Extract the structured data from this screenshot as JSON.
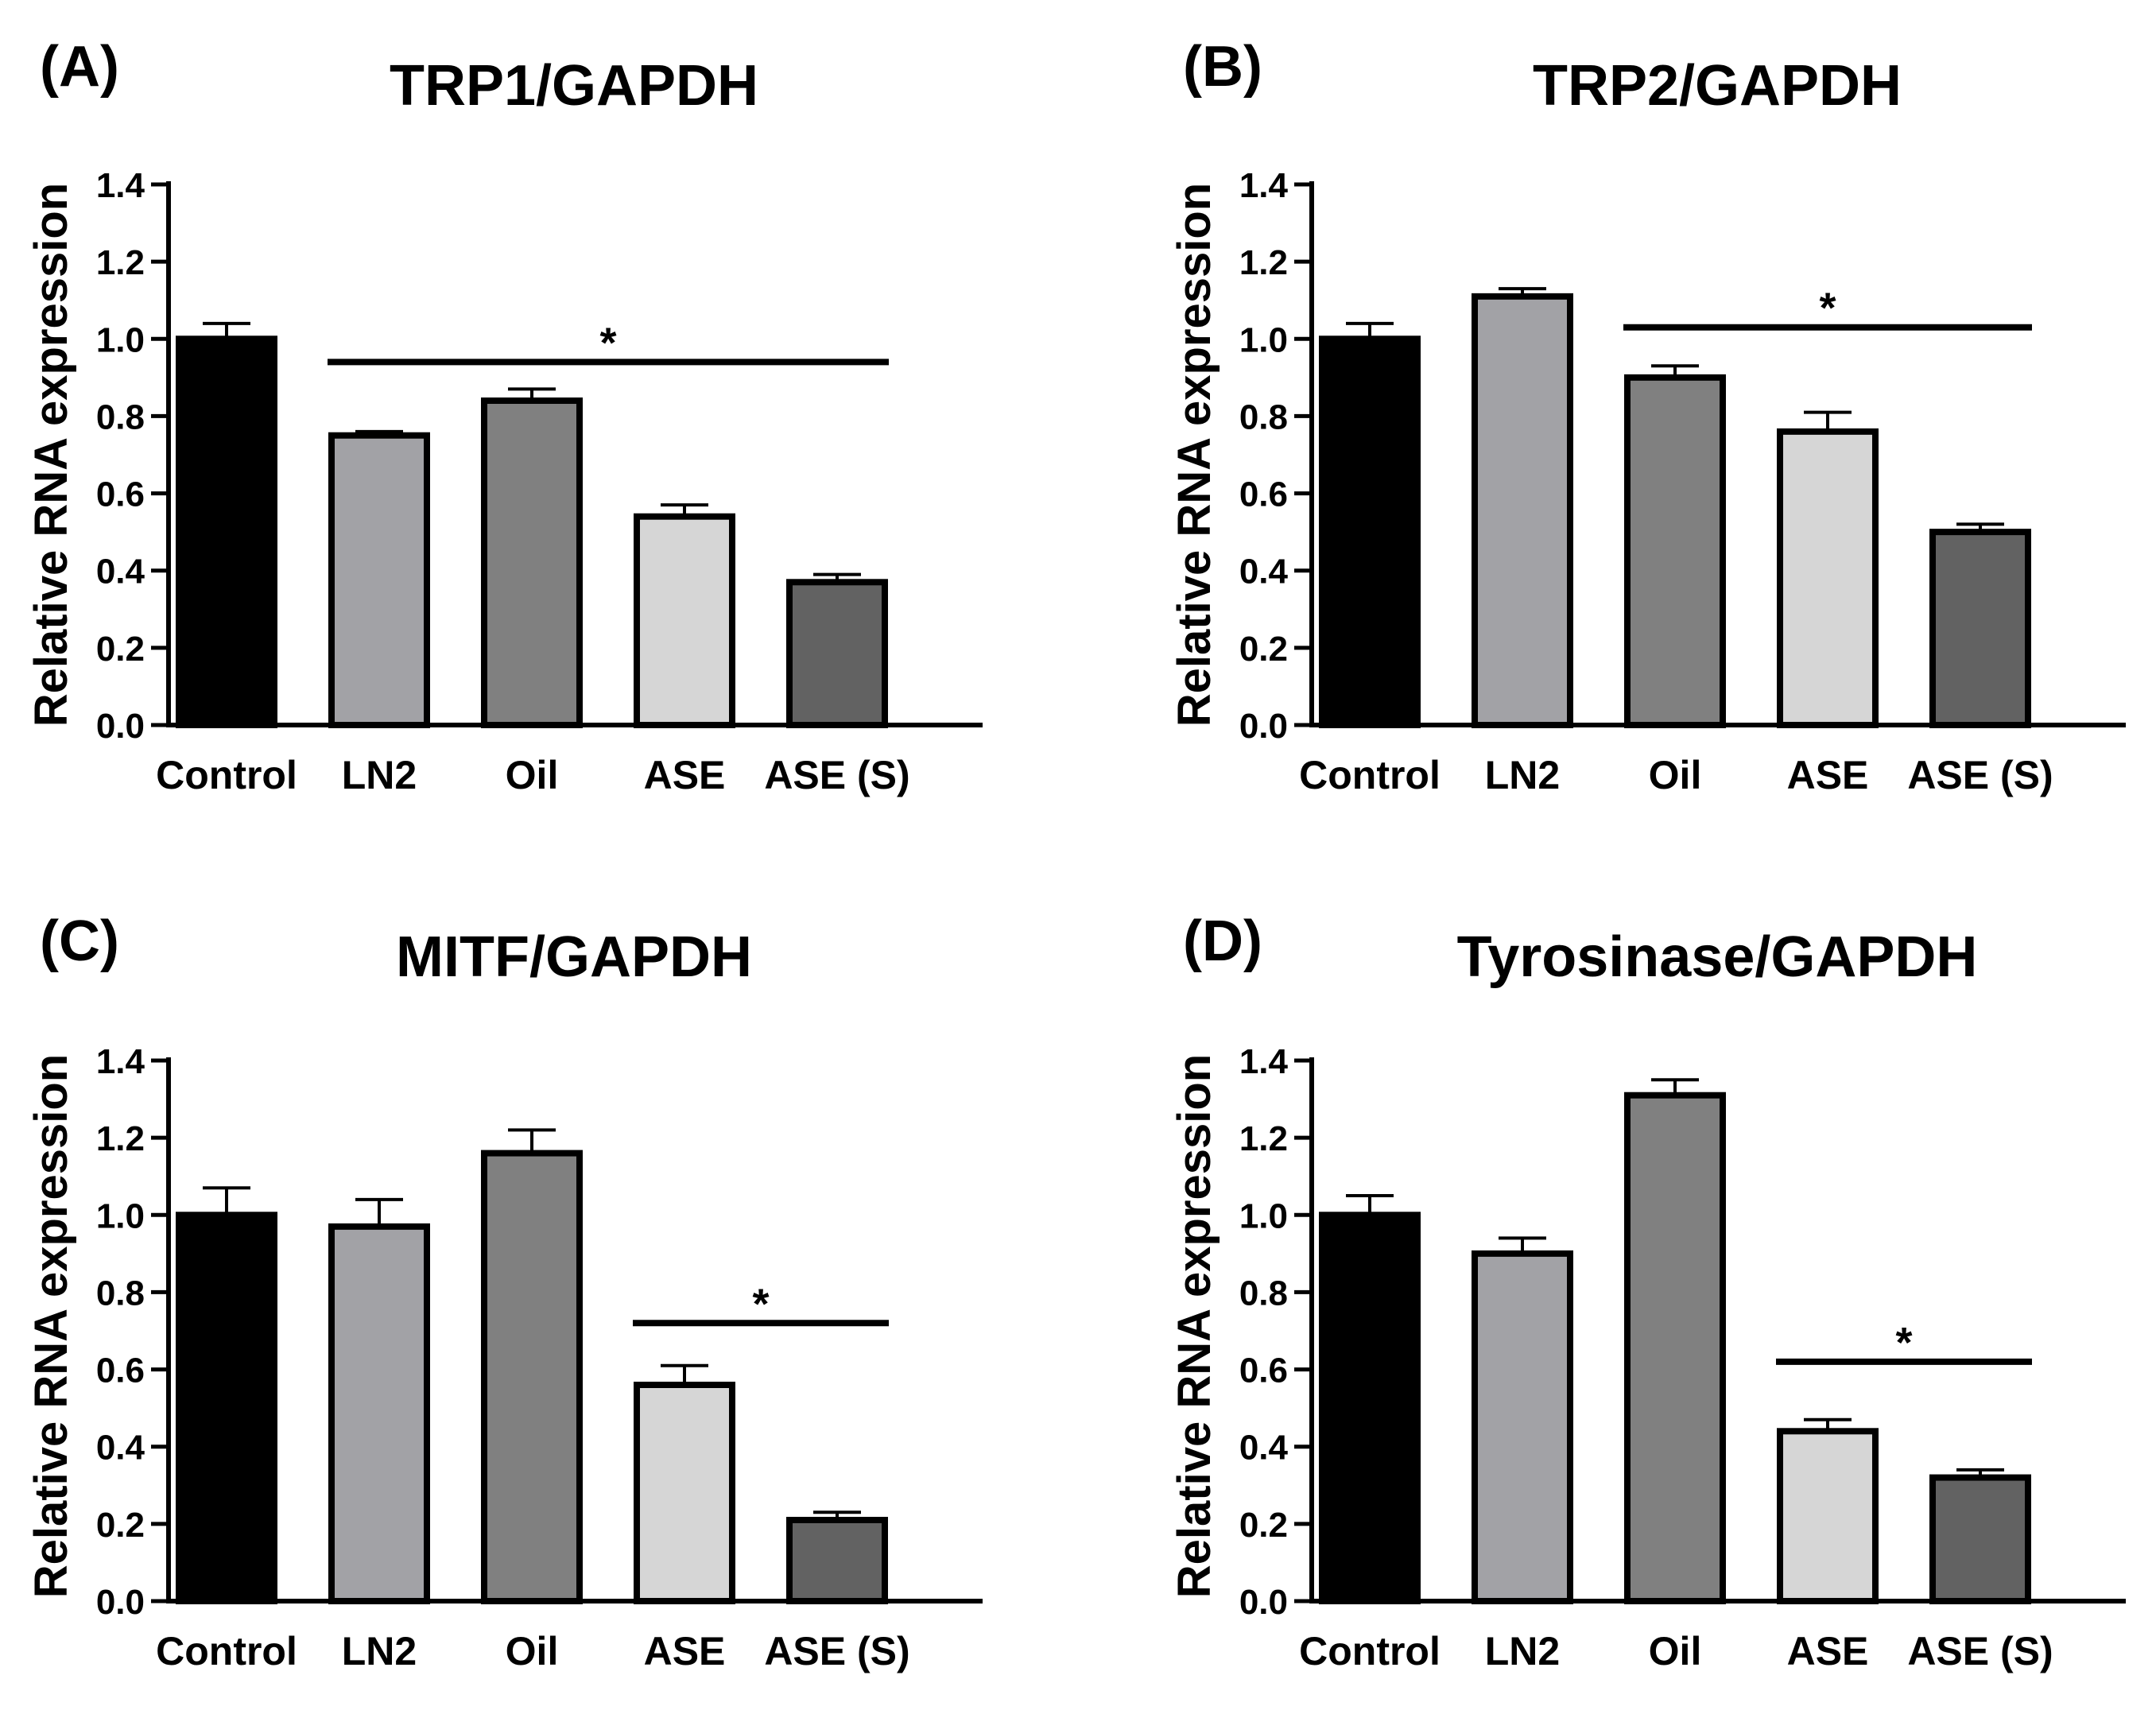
{
  "chart_data": [
    {
      "type": "bar",
      "panel": "(A)",
      "title": "TRP1/GAPDH",
      "xlabel": "",
      "ylabel": "Relative RNA expression",
      "ylim": [
        0,
        1.4
      ],
      "yticks": [
        "0.0",
        "0.2",
        "0.4",
        "0.6",
        "0.8",
        "1.0",
        "1.2",
        "1.4"
      ],
      "categories": [
        "Control",
        "LN2",
        "Oil",
        "ASE",
        "ASE (S)"
      ],
      "values": [
        1.0,
        0.75,
        0.84,
        0.54,
        0.37
      ],
      "errors": [
        0.04,
        0.01,
        0.03,
        0.03,
        0.02
      ],
      "significance": {
        "label": "*",
        "from": 1,
        "to": 4,
        "y": 0.94
      }
    },
    {
      "type": "bar",
      "panel": "(B)",
      "title": "TRP2/GAPDH",
      "xlabel": "",
      "ylabel": "Relative RNA expression",
      "ylim": [
        0,
        1.4
      ],
      "yticks": [
        "0.0",
        "0.2",
        "0.4",
        "0.6",
        "0.8",
        "1.0",
        "1.2",
        "1.4"
      ],
      "categories": [
        "Control",
        "LN2",
        "Oil",
        "ASE",
        "ASE (S)"
      ],
      "values": [
        1.0,
        1.11,
        0.9,
        0.76,
        0.5
      ],
      "errors": [
        0.04,
        0.02,
        0.03,
        0.05,
        0.02
      ],
      "significance": {
        "label": "*",
        "from": 2,
        "to": 4,
        "y": 1.03
      }
    },
    {
      "type": "bar",
      "panel": "(C)",
      "title": "MITF/GAPDH",
      "xlabel": "",
      "ylabel": "Relative RNA expression",
      "ylim": [
        0,
        1.4
      ],
      "yticks": [
        "0.0",
        "0.2",
        "0.4",
        "0.6",
        "0.8",
        "1.0",
        "1.2",
        "1.4"
      ],
      "categories": [
        "Control",
        "LN2",
        "Oil",
        "ASE",
        "ASE (S)"
      ],
      "values": [
        1.0,
        0.97,
        1.16,
        0.56,
        0.21
      ],
      "errors": [
        0.07,
        0.07,
        0.06,
        0.05,
        0.02
      ],
      "significance": {
        "label": "*",
        "from": 3,
        "to": 4,
        "y": 0.72
      }
    },
    {
      "type": "bar",
      "panel": "(D)",
      "title": "Tyrosinase/GAPDH",
      "xlabel": "",
      "ylabel": "Relative RNA expression",
      "ylim": [
        0,
        1.4
      ],
      "yticks": [
        "0.0",
        "0.2",
        "0.4",
        "0.6",
        "0.8",
        "1.0",
        "1.2",
        "1.4"
      ],
      "categories": [
        "Control",
        "LN2",
        "Oil",
        "ASE",
        "ASE (S)"
      ],
      "values": [
        1.0,
        0.9,
        1.31,
        0.44,
        0.32
      ],
      "errors": [
        0.05,
        0.04,
        0.04,
        0.03,
        0.02
      ],
      "significance": {
        "label": "*",
        "from": 3,
        "to": 4,
        "y": 0.62
      }
    }
  ],
  "bar_colors": [
    "#000000",
    "#a2a2a6",
    "#808080",
    "#d6d6d6",
    "#626262"
  ]
}
